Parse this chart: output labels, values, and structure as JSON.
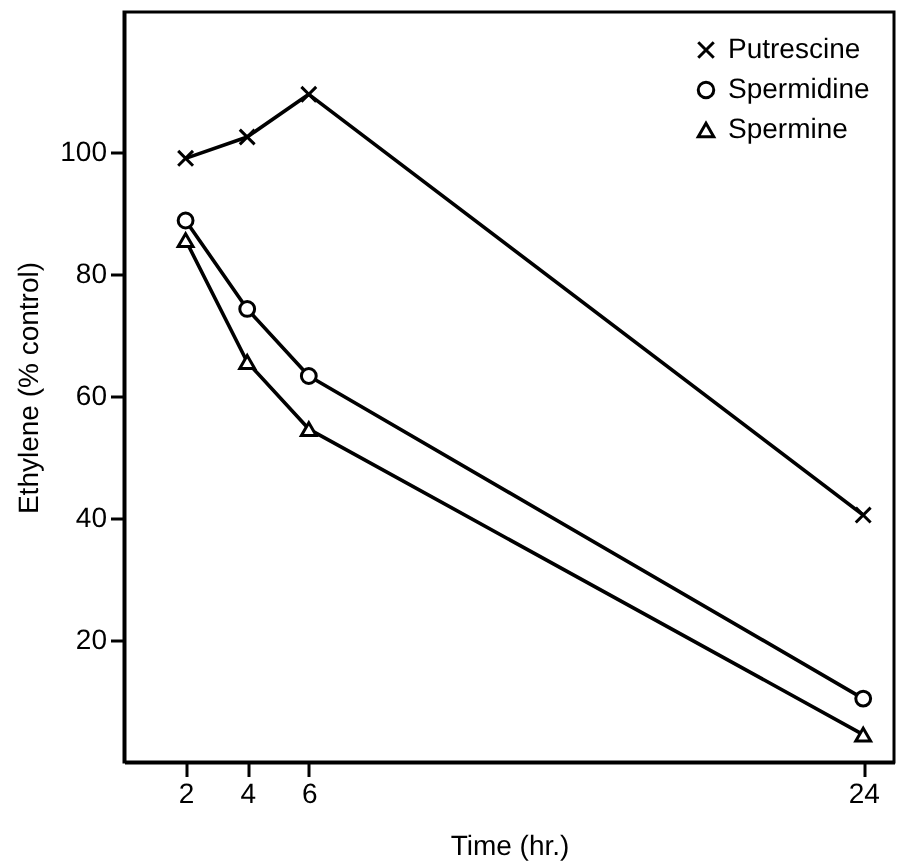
{
  "chart_data": {
    "type": "line",
    "xlabel": "Time (hr.)",
    "ylabel": "Ethylene (% control)",
    "x": [
      2,
      4,
      6,
      24
    ],
    "series": [
      {
        "name": "Putrescine",
        "color": "#000000",
        "marker": "cross",
        "values": [
          99,
          102.5,
          109.5,
          40.5
        ]
      },
      {
        "name": "Spermidine",
        "color": "#000000",
        "marker": "circle",
        "values": [
          88.8,
          74.3,
          63.3,
          10.4
        ]
      },
      {
        "name": "Spermine",
        "color": "#000000",
        "marker": "triangle",
        "values": [
          85.6,
          65.6,
          54.6,
          4.5
        ]
      }
    ],
    "xlim": [
      0,
      25
    ],
    "xticks": [
      2,
      4,
      6,
      24
    ],
    "ylim": [
      0,
      123
    ],
    "yticks": [
      20,
      40,
      60,
      80,
      100
    ],
    "grid": false,
    "legend": "top right",
    "line_style": "solid"
  }
}
